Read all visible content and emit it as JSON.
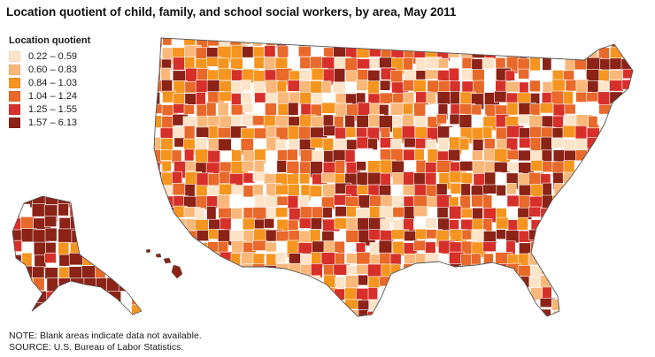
{
  "title": "Location quotient of child, family, and school social workers, by area, May 2011",
  "legend": {
    "title": "Location quotient",
    "items": [
      {
        "label": "0.22 – 0.59",
        "color": "#fde3c8"
      },
      {
        "label": "0.60 – 0.83",
        "color": "#f9b87a"
      },
      {
        "label": "0.84 – 1.03",
        "color": "#f5951f"
      },
      {
        "label": "1.04 – 1.24",
        "color": "#e8692a"
      },
      {
        "label": "1.25 – 1.55",
        "color": "#d7302a"
      },
      {
        "label": "1.57 – 6.13",
        "color": "#8c2317"
      }
    ]
  },
  "notes": {
    "note": "NOTE: Blank areas indicate data not available.",
    "source": "SOURCE: U.S. Bureau of Labor Statistics."
  },
  "colors": {
    "border": "#ffffff",
    "outline": "#555555",
    "blank": "#ffffff"
  }
}
